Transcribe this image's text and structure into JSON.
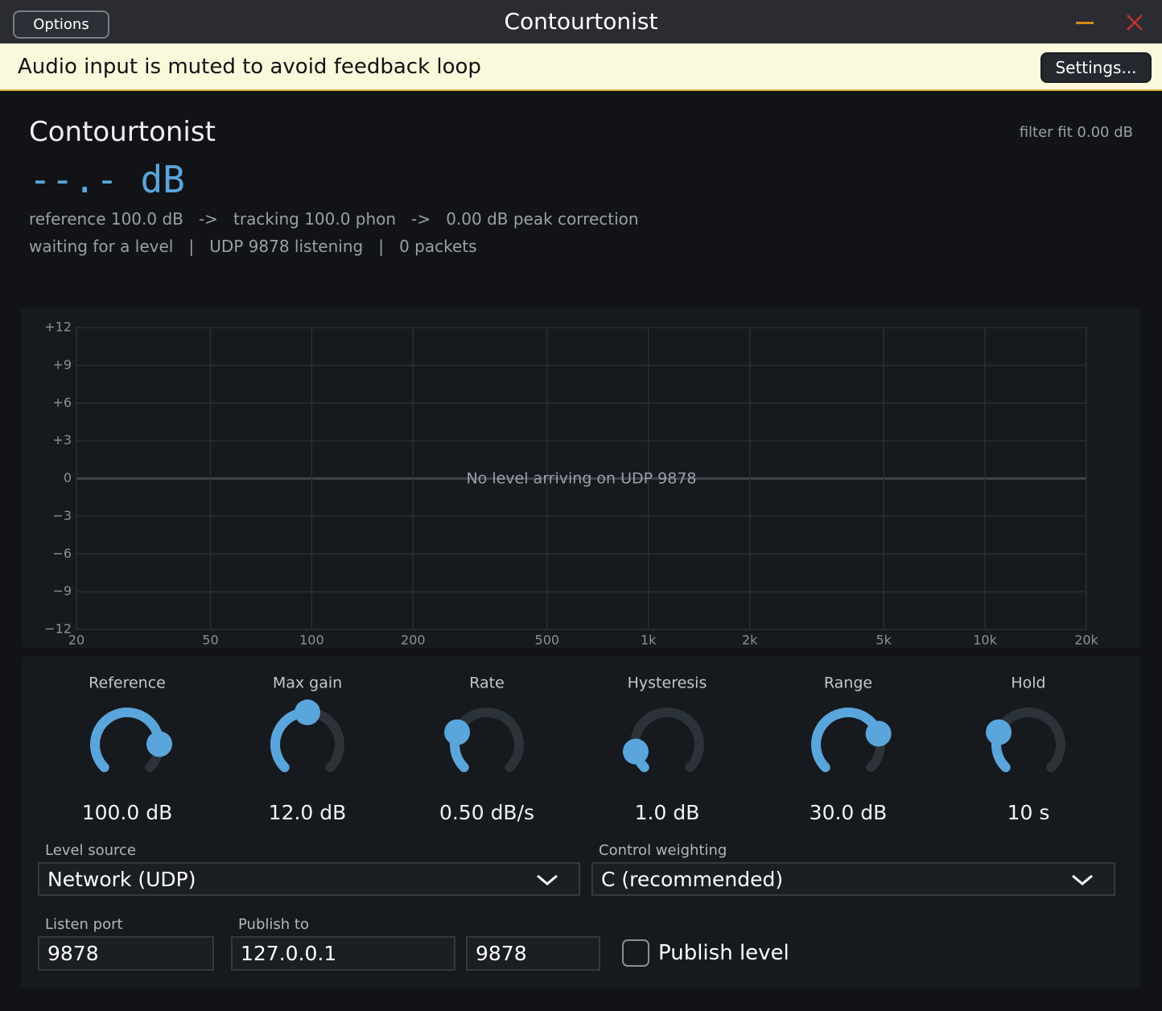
{
  "title_bar": {
    "options_button": "Options",
    "title": "Contourtonist"
  },
  "banner": {
    "message": "Audio input is muted to avoid feedback loop",
    "settings_button": "Settings..."
  },
  "header": {
    "name": "Contourtonist",
    "level": "--.- dB",
    "filter_fit": "filter fit 0.00 dB",
    "status_line_1": "reference 100.0 dB   ->   tracking 100.0 phon   ->   0.00 dB peak correction",
    "status_line_2": "waiting for a level   |   UDP 9878 listening   |   0 packets"
  },
  "graph": {
    "log_x": true,
    "xlim": [
      20,
      20000
    ],
    "ylim": [
      -12,
      12
    ],
    "xticks": [
      20,
      50,
      100,
      200,
      500,
      {
        "value": 1000,
        "label": "1k"
      },
      {
        "value": 2000,
        "label": "2k"
      },
      {
        "value": 5000,
        "label": "5k"
      },
      {
        "value": 10000,
        "label": "10k"
      },
      {
        "value": 20000,
        "label": "20k"
      }
    ],
    "yticks": [
      {
        "value": 12,
        "label": "+12"
      },
      {
        "value": 9,
        "label": "+9"
      },
      {
        "value": 6,
        "label": "+6"
      },
      {
        "value": 3,
        "label": "+3"
      },
      0,
      {
        "value": -3,
        "label": "−3"
      },
      {
        "value": -6,
        "label": "−6"
      },
      {
        "value": -9,
        "label": "−9"
      },
      {
        "value": -12,
        "label": "−12"
      }
    ],
    "message": "No level arriving on UDP 9878"
  },
  "knobs": [
    {
      "label": "Reference",
      "value": "100.0 dB"
    },
    {
      "label": "Max gain",
      "value": "12.0 dB"
    },
    {
      "label": "Rate",
      "value": "0.50 dB/s"
    },
    {
      "label": "Hysteresis",
      "value": "1.0 dB"
    },
    {
      "label": "Range",
      "value": "30.0 dB"
    },
    {
      "label": "Hold",
      "value": "10 s"
    }
  ],
  "level_source": {
    "label": "Level source",
    "value": "Network (UDP)"
  },
  "control_weighting": {
    "label": "Control weighting",
    "value": "C (recommended)"
  },
  "listen_port": {
    "label": "Listen port",
    "value": "9878"
  },
  "publish_to": {
    "label": "Publish to",
    "host": "127.0.0.1",
    "port": "9878"
  },
  "publish_level": {
    "label": "Publish level"
  }
}
